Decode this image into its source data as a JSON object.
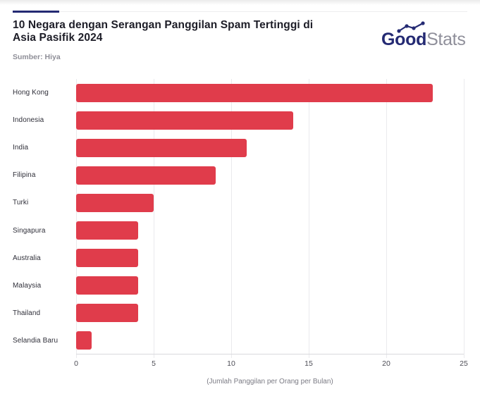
{
  "header": {
    "title_lines": [
      "10 Negara dengan Serangan Panggilan Spam Tertinggi di",
      "Asia Pasifik 2024"
    ],
    "source_label": "Sumber: Hiya",
    "accent_color": "#242a73"
  },
  "logo": {
    "part_bold": "Good",
    "part_light": "Stats",
    "bold_color": "#242a73",
    "light_color": "#8f8f9a"
  },
  "chart_data": {
    "type": "bar",
    "orientation": "horizontal",
    "title": "10 Negara dengan Serangan Panggilan Spam Tertinggi di Asia Pasifik 2024",
    "source": "Sumber: Hiya",
    "categories": [
      "Hong Kong",
      "Indonesia",
      "India",
      "Filipina",
      "Turki",
      "Singapura",
      "Australia",
      "Malaysia",
      "Thailand",
      "Selandia Baru"
    ],
    "values": [
      23,
      14,
      11,
      9,
      5,
      4,
      4,
      4,
      4,
      1
    ],
    "xlabel": "(Jumlah Panggilan per Orang per Bulan)",
    "xlim": [
      0,
      25
    ],
    "xticks": [
      0,
      5,
      10,
      15,
      20,
      25
    ],
    "bar_color": "#e03c4b",
    "gridline_color": "#eaeaed",
    "grid": true,
    "legend": false
  }
}
